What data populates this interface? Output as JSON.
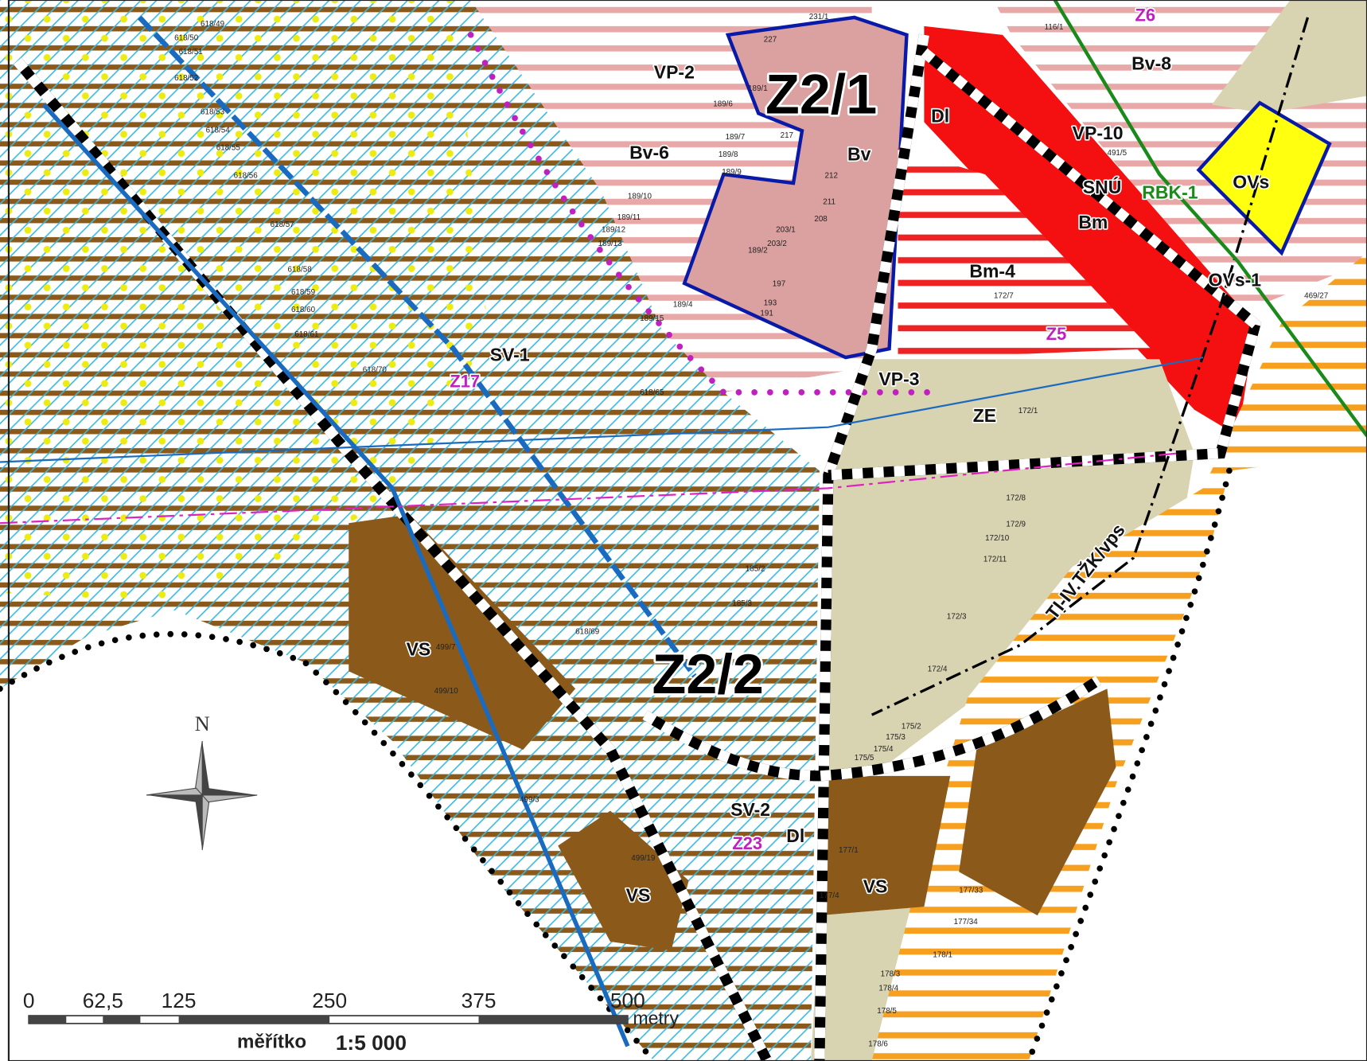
{
  "map": {
    "labels": [
      "Z2/1",
      "Z2/2",
      "VP-2",
      "Bv-6",
      "Bv",
      "Dl",
      "VP-10",
      "Bv-8",
      "Z6",
      "SNÚ",
      "RBK-1",
      "OVs",
      "Bm",
      "Bm-4",
      "OVs-1",
      "Z5",
      "VP-3",
      "ZE",
      "SV-1",
      "Z17",
      "VS",
      "VS",
      "VS",
      "SV-2",
      "Z23",
      "Dl",
      "TI-IV.TŽK/vps"
    ],
    "parcels": [
      "618/49",
      "618/50",
      "618/51",
      "618/52",
      "618/53",
      "618/54",
      "618/55",
      "618/56",
      "618/57",
      "618/58",
      "618/59",
      "618/60",
      "618/61",
      "189/1",
      "189/6",
      "189/7",
      "189/8",
      "189/9",
      "189/10",
      "189/11",
      "189/12",
      "189/13",
      "189/4",
      "189/15",
      "217",
      "212",
      "211",
      "208",
      "203/1",
      "203/2",
      "189/2",
      "197",
      "193",
      "191",
      "227",
      "231/1",
      "172/7",
      "172/1",
      "172/8",
      "172/9",
      "172/10",
      "172/11",
      "172/3",
      "172/4",
      "175/2",
      "175/3",
      "175/4",
      "175/5",
      "177/1",
      "177/4",
      "177/33",
      "177/34",
      "178/1",
      "178/3",
      "178/4",
      "178/5",
      "178/6",
      "499/7",
      "499/10",
      "499/19",
      "499/3",
      "618/65",
      "618/69",
      "618/70",
      "185/2",
      "185/3",
      "491/5",
      "469/27",
      "116/1"
    ],
    "north": "N",
    "scale_bar": {
      "labels": [
        "0",
        "62,5",
        "125",
        "250",
        "375",
        "500"
      ],
      "unit": "metry",
      "caption": "měřítko",
      "ratio": "1:5 000"
    }
  }
}
